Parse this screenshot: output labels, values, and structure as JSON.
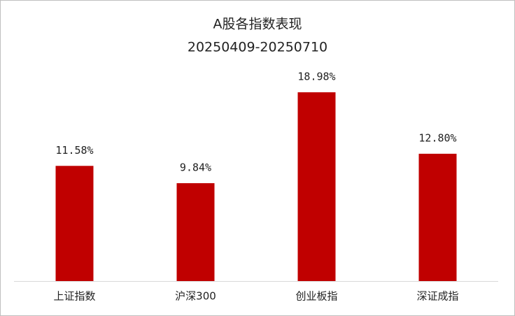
{
  "chart_data": {
    "type": "bar",
    "title": "A股各指数表现",
    "subtitle": "20250409-20250710",
    "categories": [
      "上证指数",
      "沪深300",
      "创业板指",
      "深证成指"
    ],
    "values": [
      11.58,
      9.84,
      18.98,
      12.8
    ],
    "value_labels": [
      "11.58%",
      "9.84%",
      "18.98%",
      "12.80%"
    ],
    "color": "#c00000"
  }
}
